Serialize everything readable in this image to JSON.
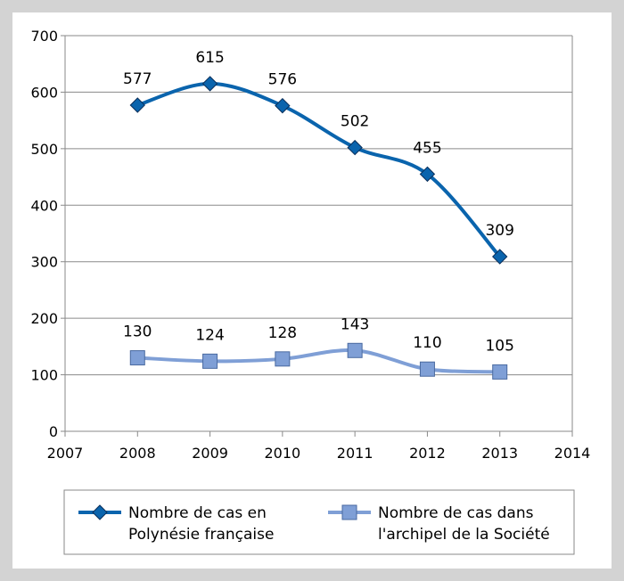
{
  "chart_data": {
    "type": "line",
    "x": [
      2008,
      2009,
      2010,
      2011,
      2012,
      2013
    ],
    "xlim": [
      2007,
      2014
    ],
    "xticks": [
      "2007",
      "2008",
      "2009",
      "2010",
      "2011",
      "2012",
      "2013",
      "2014"
    ],
    "ylim": [
      0,
      700
    ],
    "yticks": [
      "0",
      "100",
      "200",
      "300",
      "400",
      "500",
      "600",
      "700"
    ],
    "grid": true,
    "legend_position": "bottom",
    "series": [
      {
        "name": "Nombre de cas en Polynésie française",
        "legend_lines": [
          "Nombre de cas en",
          "Polynésie française"
        ],
        "values": [
          577,
          615,
          576,
          502,
          455,
          309
        ],
        "labels": [
          "577",
          "615",
          "576",
          "502",
          "455",
          "309"
        ],
        "color": "#0a64ad",
        "marker": "diamond"
      },
      {
        "name": "Nombre de cas dans l'archipel de la Société",
        "legend_lines": [
          "Nombre de cas dans",
          "l'archipel de la Société"
        ],
        "values": [
          130,
          124,
          128,
          143,
          110,
          105
        ],
        "labels": [
          "130",
          "124",
          "128",
          "143",
          "110",
          "105"
        ],
        "color": "#7f9fd6",
        "marker": "square"
      }
    ]
  }
}
